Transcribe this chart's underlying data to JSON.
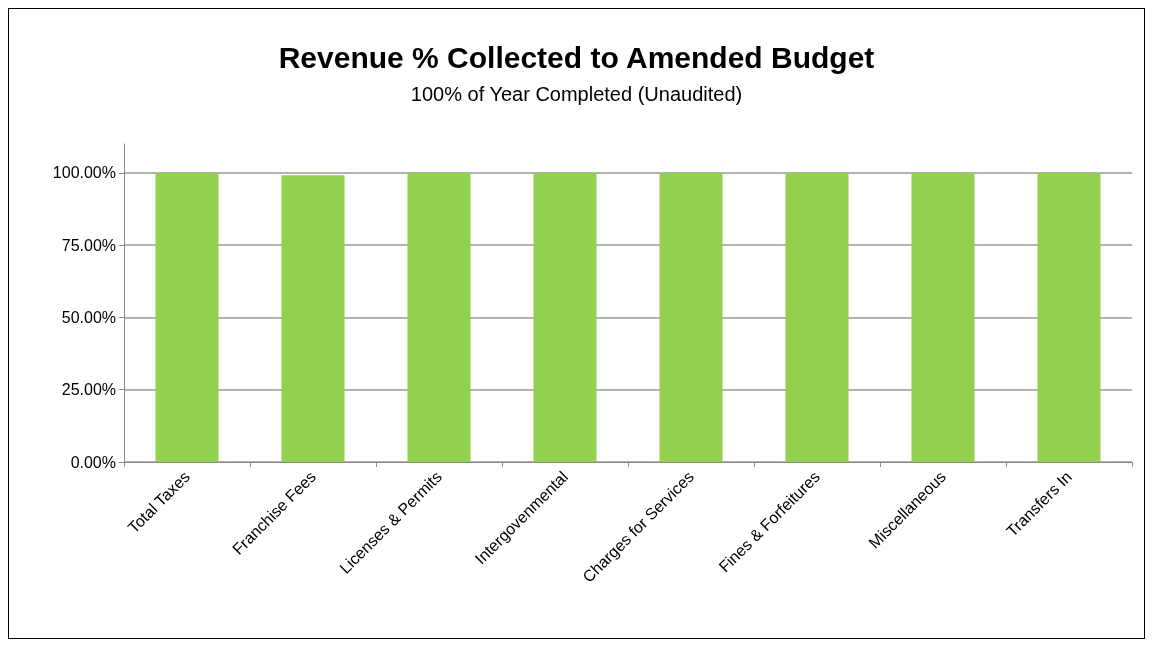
{
  "chart_data": {
    "type": "bar",
    "title": "Revenue % Collected to Amended Budget",
    "subtitle": "100% of Year Completed (Unaudited)",
    "categories": [
      "Total Taxes",
      "Franchise Fees",
      "Licenses & Permits",
      "Intergovenmental",
      "Charges for Services",
      "Fines & Forfeitures",
      "Miscellaneous",
      "Transfers In"
    ],
    "values": [
      100,
      99.2,
      100,
      100,
      100,
      100,
      100,
      100
    ],
    "color": "#92d050",
    "ylim": [
      0,
      110
    ],
    "yticks": [
      {
        "value": 0,
        "label": "0.00%"
      },
      {
        "value": 25,
        "label": "25.00%"
      },
      {
        "value": 50,
        "label": "50.00%"
      },
      {
        "value": 75,
        "label": "75.00%"
      },
      {
        "value": 100,
        "label": "100.00%"
      }
    ],
    "grid": "y"
  }
}
